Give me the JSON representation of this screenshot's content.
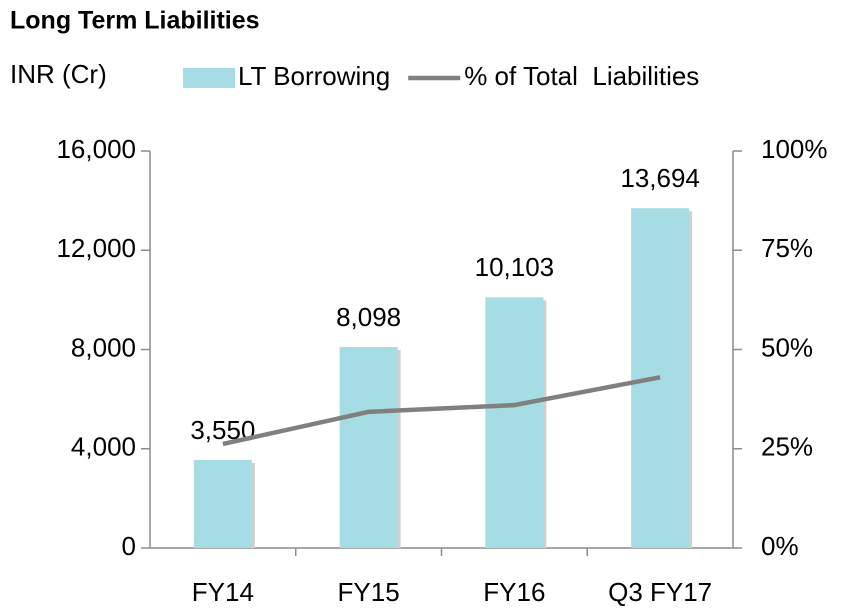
{
  "chart_data": {
    "type": "bar",
    "title": "Long Term Liabilities",
    "y_label": "INR (Cr)",
    "categories": [
      "FY14",
      "FY15",
      "FY16",
      "Q3 FY17"
    ],
    "series": [
      {
        "name": "LT Borrowing",
        "type": "bar",
        "color": "#a6dce3",
        "values": [
          3550,
          8098,
          10103,
          13694
        ],
        "value_labels": [
          "3,550",
          "8,098",
          "10,103",
          "13,694"
        ]
      },
      {
        "name": "% of Total  Liabilities",
        "type": "line",
        "axis": "y2",
        "color": "#808080",
        "values": [
          26.2,
          34.3,
          36,
          43
        ]
      }
    ],
    "ylim": [
      0,
      16000
    ],
    "yticks": [
      {
        "value": 0,
        "label": "0"
      },
      {
        "value": 4000,
        "label": "4,000"
      },
      {
        "value": 8000,
        "label": "8,000"
      },
      {
        "value": 12000,
        "label": "12,000"
      },
      {
        "value": 16000,
        "label": "16,000"
      }
    ],
    "y2lim": [
      0,
      100
    ],
    "y2ticks": [
      {
        "value": 0,
        "label": "0%"
      },
      {
        "value": 25,
        "label": "25%"
      },
      {
        "value": 50,
        "label": "50%"
      },
      {
        "value": 75,
        "label": "75%"
      },
      {
        "value": 100,
        "label": "100%"
      }
    ],
    "grid": false
  }
}
